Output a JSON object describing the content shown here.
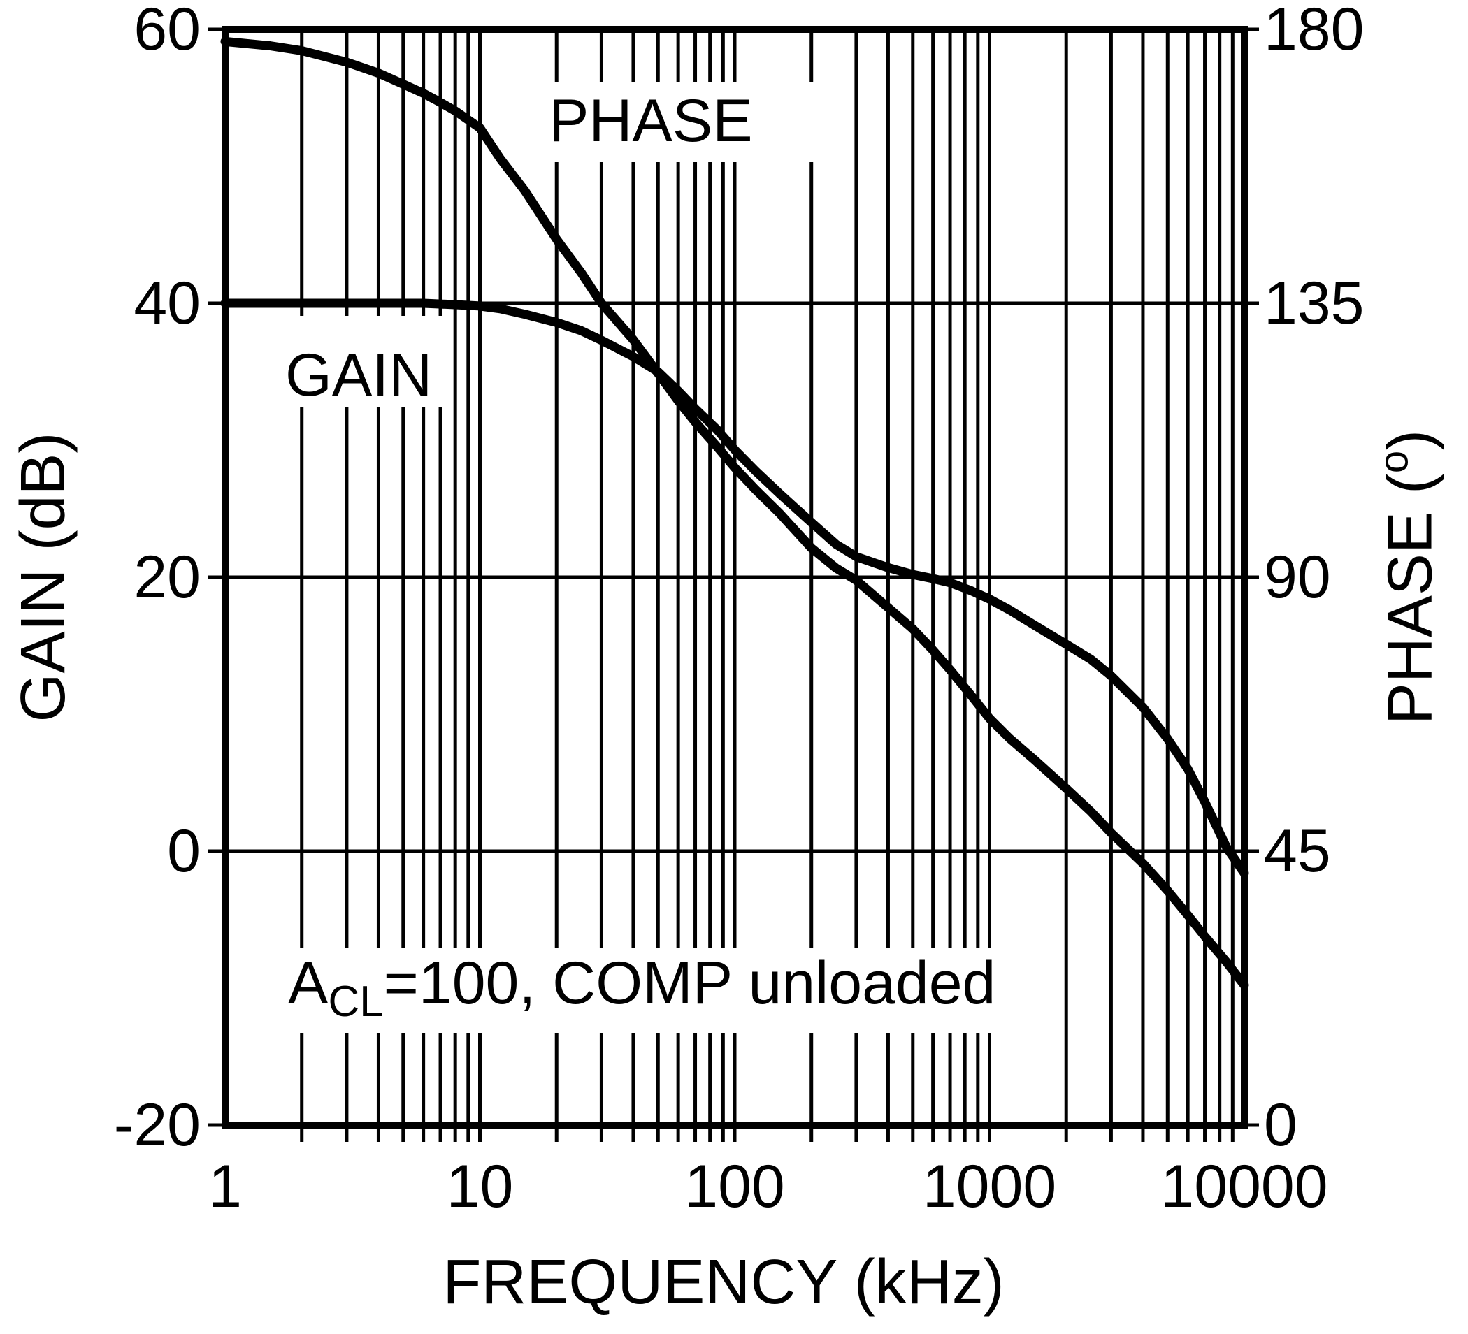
{
  "figure": {
    "xlabel": "FREQUENCY (kHz)",
    "ylabel_left": "GAIN (dB)",
    "ylabel_right_prefix": "PHASE (",
    "ylabel_right_sup": "o",
    "ylabel_right_suffix": ")"
  },
  "curve_labels": {
    "phase": "PHASE",
    "gain": "GAIN"
  },
  "annotation": {
    "prefix": "A",
    "subscript": "CL",
    "suffix": "=100, COMP unloaded"
  },
  "axis_ticks": {
    "x": [
      "1",
      "10",
      "100",
      "1000",
      "10000"
    ],
    "gain": [
      "60",
      "40",
      "20",
      "0",
      "-20"
    ],
    "phase": [
      "180",
      "135",
      "90",
      "45",
      "0"
    ]
  },
  "colors": {
    "ink": "#000000",
    "background": "#ffffff"
  },
  "chart_data": {
    "type": "line",
    "title": "",
    "xlabel": "FREQUENCY (kHz)",
    "x_scale": "log",
    "xlim": [
      1,
      10000
    ],
    "left_axis": {
      "label": "GAIN (dB)",
      "lim": [
        -20,
        60
      ],
      "ticks": [
        60,
        40,
        20,
        0,
        -20
      ]
    },
    "right_axis": {
      "label": "PHASE (°)",
      "lim": [
        0,
        180
      ],
      "ticks": [
        180,
        135,
        90,
        45,
        0
      ]
    },
    "grid": {
      "vertical": "log minor lines each decade",
      "horizontal": "every 20 dB (= 45°)"
    },
    "legend_position": "labels beside curves",
    "annotation": "ACL=100, COMP unloaded",
    "series": [
      {
        "name": "GAIN",
        "axis": "left",
        "unit": "dB",
        "points": [
          [
            1,
            40
          ],
          [
            1.5,
            40
          ],
          [
            2,
            40
          ],
          [
            3,
            40
          ],
          [
            4,
            40
          ],
          [
            5,
            40
          ],
          [
            6,
            40
          ],
          [
            8,
            39.9
          ],
          [
            10,
            39.8
          ],
          [
            12,
            39.6
          ],
          [
            15,
            39.2
          ],
          [
            20,
            38.6
          ],
          [
            25,
            38
          ],
          [
            30,
            37.3
          ],
          [
            40,
            36.1
          ],
          [
            50,
            35
          ],
          [
            60,
            33.6
          ],
          [
            70,
            32.3
          ],
          [
            85,
            30.8
          ],
          [
            100,
            29.3
          ],
          [
            120,
            27.8
          ],
          [
            150,
            26.1
          ],
          [
            200,
            24
          ],
          [
            250,
            22.4
          ],
          [
            300,
            21.5
          ],
          [
            400,
            20.7
          ],
          [
            500,
            20.2
          ],
          [
            600,
            19.9
          ],
          [
            700,
            19.6
          ],
          [
            850,
            19
          ],
          [
            1000,
            18.4
          ],
          [
            1200,
            17.6
          ],
          [
            1500,
            16.5
          ],
          [
            2000,
            15.1
          ],
          [
            2500,
            14
          ],
          [
            3000,
            12.8
          ],
          [
            4000,
            10.5
          ],
          [
            5000,
            8.2
          ],
          [
            6000,
            6
          ],
          [
            7000,
            3.6
          ],
          [
            8500,
            0.3
          ],
          [
            10000,
            -1.6
          ]
        ]
      },
      {
        "name": "PHASE",
        "axis": "right",
        "unit": "deg",
        "points": [
          [
            1,
            178
          ],
          [
            1.5,
            177.3
          ],
          [
            2,
            176.5
          ],
          [
            3,
            174.6
          ],
          [
            4,
            172.8
          ],
          [
            5,
            171
          ],
          [
            6,
            169.5
          ],
          [
            7,
            168
          ],
          [
            8,
            166.6
          ],
          [
            10,
            163.8
          ],
          [
            12,
            158.8
          ],
          [
            15,
            153.5
          ],
          [
            20,
            145.5
          ],
          [
            25,
            140
          ],
          [
            30,
            135
          ],
          [
            40,
            129
          ],
          [
            50,
            123.5
          ],
          [
            60,
            119
          ],
          [
            70,
            115.5
          ],
          [
            85,
            111.5
          ],
          [
            100,
            108
          ],
          [
            120,
            104.5
          ],
          [
            150,
            100.5
          ],
          [
            200,
            94.8
          ],
          [
            250,
            91.5
          ],
          [
            300,
            89.5
          ],
          [
            400,
            85
          ],
          [
            500,
            81.5
          ],
          [
            600,
            78
          ],
          [
            700,
            74.8
          ],
          [
            850,
            70.5
          ],
          [
            1000,
            66.8
          ],
          [
            1200,
            63.5
          ],
          [
            1500,
            60
          ],
          [
            2000,
            55.3
          ],
          [
            2500,
            51.5
          ],
          [
            3000,
            48
          ],
          [
            4000,
            43
          ],
          [
            5000,
            38.5
          ],
          [
            6000,
            34.5
          ],
          [
            7000,
            31
          ],
          [
            8500,
            26.8
          ],
          [
            10000,
            23
          ]
        ]
      }
    ]
  }
}
